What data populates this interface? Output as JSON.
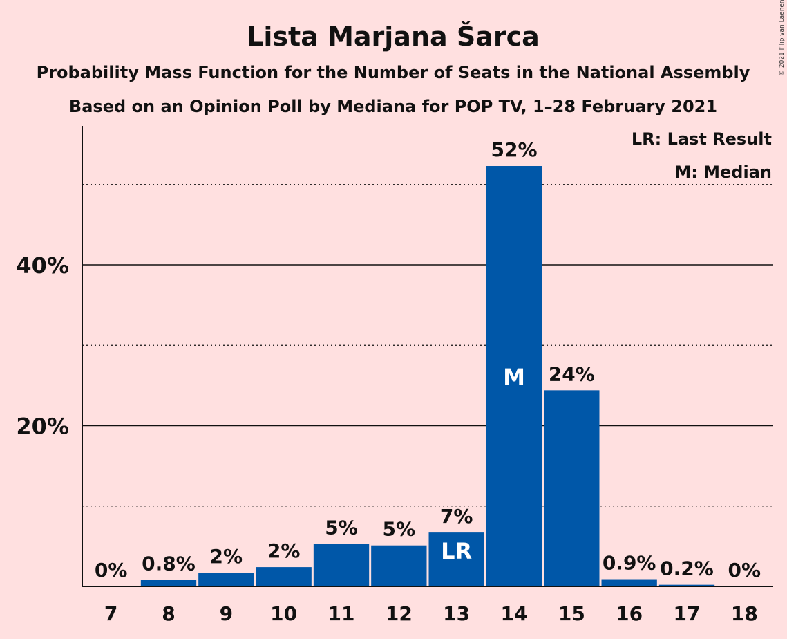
{
  "chart_data": {
    "type": "bar",
    "title": "Lista Marjana Šarca",
    "subtitle": "Probability Mass Function for the Number of Seats in the National Assembly",
    "subtitle2": "Based on an Opinion Poll by Mediana for POP TV, 1–28 February 2021",
    "copyright": "© 2021 Filip van Laenen",
    "legend": [
      "LR: Last Result",
      "M: Median"
    ],
    "categories": [
      "7",
      "8",
      "9",
      "10",
      "11",
      "12",
      "13",
      "14",
      "15",
      "16",
      "17",
      "18"
    ],
    "values": [
      0,
      0.8,
      1.7,
      2.4,
      5.3,
      5.1,
      6.7,
      52.3,
      24.4,
      0.9,
      0.2,
      0
    ],
    "value_labels": [
      "0%",
      "0.8%",
      "2%",
      "2%",
      "5%",
      "5%",
      "7%",
      "52%",
      "24%",
      "0.9%",
      "0.2%",
      "0%"
    ],
    "bar_markers": {
      "13": "LR",
      "14": "M"
    },
    "yticks": [
      20,
      40
    ],
    "ytick_labels": [
      "20%",
      "40%"
    ],
    "minor_gridlines": [
      10,
      30,
      50
    ],
    "ylim": [
      0,
      57
    ],
    "bar_color": "#0057a8",
    "background_color": "#ffe0e0"
  }
}
